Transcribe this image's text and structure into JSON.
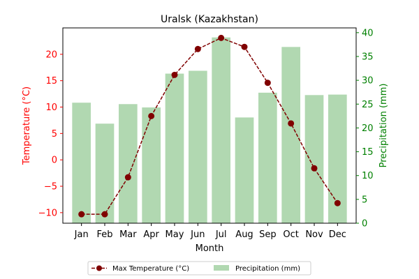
{
  "chart_data": {
    "type": "bar+line",
    "title": "Uralsk (Kazakhstan)",
    "xlabel": "Month",
    "categories": [
      "Jan",
      "Feb",
      "Mar",
      "Apr",
      "May",
      "Jun",
      "Jul",
      "Aug",
      "Sep",
      "Oct",
      "Nov",
      "Dec"
    ],
    "left_axis": {
      "label": "Temperature (°C)",
      "ylim": [
        -12,
        25
      ],
      "ticks": [
        -10,
        -5,
        0,
        5,
        10,
        15,
        20
      ],
      "tick_labels": [
        "−10",
        "−5",
        "0",
        "5",
        "10",
        "15",
        "20"
      ],
      "color": "#ff0000"
    },
    "right_axis": {
      "label": "Precipitation (mm)",
      "ylim": [
        0,
        41
      ],
      "ticks": [
        0,
        5,
        10,
        15,
        20,
        25,
        30,
        35,
        40
      ],
      "tick_labels": [
        "0",
        "5",
        "10",
        "15",
        "20",
        "25",
        "30",
        "35",
        "40"
      ],
      "color": "#008000"
    },
    "series": [
      {
        "name": "Max Temperature (°C)",
        "type": "line",
        "axis": "left",
        "color": "#800000",
        "values": [
          -10.3,
          -10.3,
          -3.3,
          8.3,
          16.1,
          21.0,
          23.1,
          21.4,
          14.6,
          6.9,
          -1.6,
          -8.2
        ]
      },
      {
        "name": "Precipitation (mm)",
        "type": "bar",
        "axis": "right",
        "color": "#b1d8b1",
        "values": [
          25.3,
          20.9,
          25.0,
          24.3,
          31.4,
          32.0,
          39.0,
          22.2,
          27.4,
          37.0,
          26.9,
          27.0
        ]
      }
    ],
    "legend": {
      "placement": "bottom-center",
      "columns": 2
    }
  }
}
